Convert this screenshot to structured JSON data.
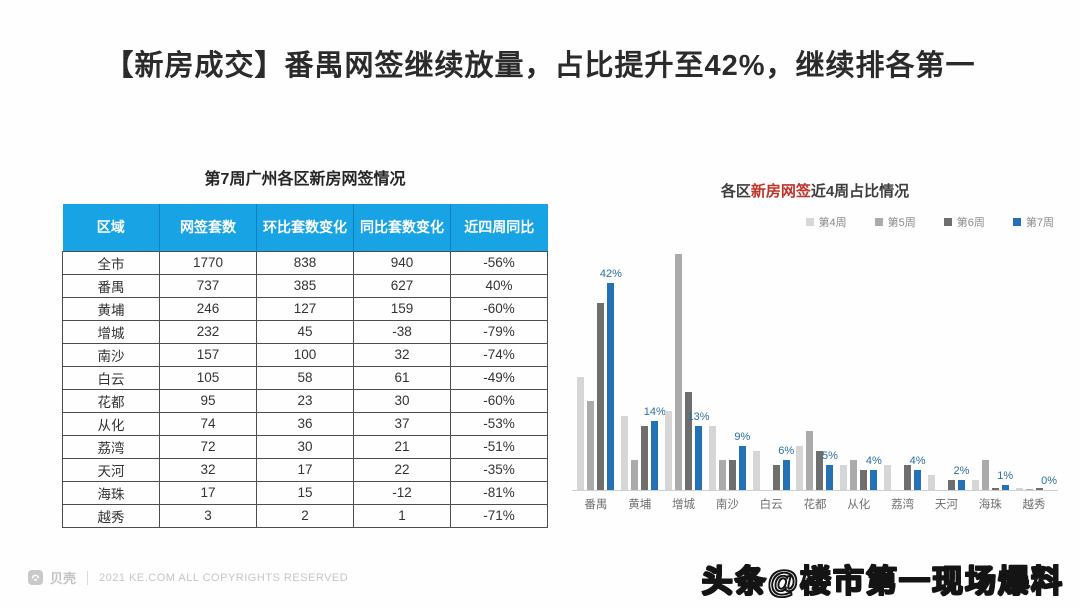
{
  "page": {
    "title": "【新房成交】番禺网签继续放量，占比提升至42%，继续排各第一"
  },
  "colors": {
    "table-header-bg": "#18a3e4",
    "table-header-divider": "#0e7fc0",
    "chart-highlight": "#bf3329",
    "bar-blue": "#2272b5",
    "label-blue": "#2a6ea9"
  },
  "table": {
    "title": "第7周广州各区新房网签情况",
    "headers": [
      "区域",
      "网签套数",
      "环比套数变化",
      "同比套数变化",
      "近四周同比"
    ],
    "rows": [
      [
        "全市",
        "1770",
        "838",
        "940",
        "-56%"
      ],
      [
        "番禺",
        "737",
        "385",
        "627",
        "40%"
      ],
      [
        "黄埔",
        "246",
        "127",
        "159",
        "-60%"
      ],
      [
        "增城",
        "232",
        "45",
        "-38",
        "-79%"
      ],
      [
        "南沙",
        "157",
        "100",
        "32",
        "-74%"
      ],
      [
        "白云",
        "105",
        "58",
        "61",
        "-49%"
      ],
      [
        "花都",
        "95",
        "23",
        "30",
        "-60%"
      ],
      [
        "从化",
        "74",
        "36",
        "37",
        "-53%"
      ],
      [
        "荔湾",
        "72",
        "30",
        "21",
        "-51%"
      ],
      [
        "天河",
        "32",
        "17",
        "22",
        "-35%"
      ],
      [
        "海珠",
        "17",
        "15",
        "-12",
        "-81%"
      ],
      [
        "越秀",
        "3",
        "2",
        "1",
        "-71%"
      ]
    ]
  },
  "chart": {
    "title_prefix": "各区",
    "title_highlight": "新房网签",
    "title_suffix": "近4周占比情况"
  },
  "chart_data": {
    "type": "bar",
    "title": "各区新房网签近4周占比情况",
    "categories": [
      "番禺",
      "黄埔",
      "增城",
      "南沙",
      "白云",
      "花都",
      "从化",
      "荔湾",
      "天河",
      "海珠",
      "越秀"
    ],
    "series": [
      {
        "name": "第4周",
        "color": "#d6d6d6",
        "values": [
          23,
          15,
          16,
          13,
          8,
          9,
          5,
          5,
          3,
          2,
          0.4
        ]
      },
      {
        "name": "第5周",
        "color": "#ababab",
        "values": [
          18,
          6,
          48,
          6,
          0,
          12,
          6,
          0,
          0,
          6,
          0.3
        ]
      },
      {
        "name": "第6周",
        "color": "#6e6e6e",
        "values": [
          38,
          13,
          20,
          6,
          5,
          8,
          4,
          5,
          2,
          0.4,
          0.4
        ]
      },
      {
        "name": "第7周",
        "color": "#2272b5",
        "values": [
          42,
          14,
          13,
          9,
          6,
          5,
          4,
          4,
          2,
          1,
          0
        ]
      }
    ],
    "labels_on_series": "第7周",
    "labels": [
      "42%",
      "14%",
      "13%",
      "9%",
      "6%",
      "5%",
      "4%",
      "4%",
      "2%",
      "1%",
      "0%"
    ],
    "xlabel": "",
    "ylabel": "",
    "ylim": [
      0,
      50
    ],
    "grid": false,
    "legend_position": "top-right"
  },
  "footer": {
    "brand": "贝壳",
    "copyright": "2021 KE.COM ALL COPYRIGHTS  RESERVED",
    "watermark": "头条@楼市第一现场爆料"
  }
}
